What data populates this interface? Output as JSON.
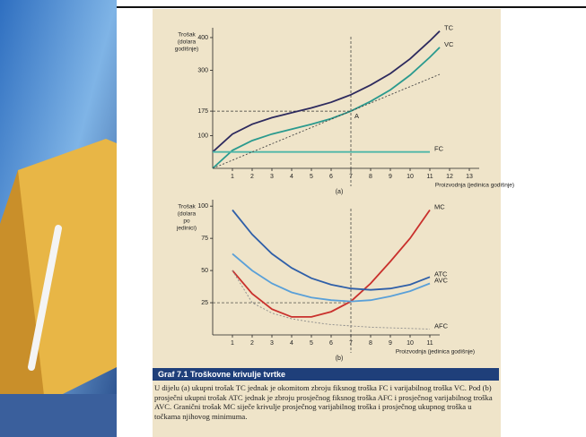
{
  "figure": {
    "title": "Graf 7.1 Troškovne krivulje tvrtke",
    "caption": "U dijelu (a) ukupni trošak TC jednak je okomitom zbroju fiksnog troška FC i varijabilnog troška VC. Pod (b) prosječni ukupni trošak ATC jednak je zbroju prosječnog fiksnog troška AFC i prosječnog varijabilnog troška AVC. Granični trošak MC siječe krivulje prosječnog varijabilnog troška i prosječnog ukupnog troška u točkama njihovog minimuma."
  },
  "chart_data": [
    {
      "type": "line",
      "panel": "(a)",
      "y_label": [
        "Trošak",
        "(dolara",
        "godišnje)"
      ],
      "x_label": "Proizvodnja (jedinica godišnje)",
      "x": [
        0,
        1,
        2,
        3,
        4,
        5,
        6,
        7,
        8,
        9,
        10,
        11,
        11.5
      ],
      "series": [
        {
          "name": "TC",
          "color": "#2d2a5e",
          "style": "solid",
          "values": [
            50,
            105,
            135,
            155,
            170,
            185,
            202,
            225,
            255,
            290,
            335,
            390,
            420
          ]
        },
        {
          "name": "VC",
          "color": "#2a9a8e",
          "style": "solid",
          "values": [
            0,
            55,
            85,
            105,
            120,
            135,
            152,
            175,
            205,
            240,
            285,
            340,
            370
          ]
        },
        {
          "name": "FC",
          "color": "#4db6a8",
          "style": "solid",
          "values": [
            50,
            50,
            50,
            50,
            50,
            50,
            50,
            50,
            50,
            50,
            50,
            50,
            null
          ]
        },
        {
          "name": null,
          "color": "#444444",
          "style": "dotted",
          "values": [
            0,
            25,
            50,
            75,
            100,
            125,
            150,
            175,
            200,
            225,
            250,
            275,
            287.5
          ]
        }
      ],
      "annotations": [
        {
          "text": "A",
          "x": 7,
          "y": 175
        }
      ],
      "guides": {
        "x": 7,
        "y": 175
      },
      "xlim": [
        0,
        13.5
      ],
      "ylim": [
        0,
        430
      ],
      "xticks": [
        1,
        2,
        3,
        4,
        5,
        6,
        7,
        8,
        9,
        10,
        11,
        12,
        13
      ],
      "yticks": [
        100,
        175,
        300,
        400
      ]
    },
    {
      "type": "line",
      "panel": "(b)",
      "y_label": [
        "Trošak",
        "(dolara",
        "po",
        "jedinici)"
      ],
      "x_label": "Proizvodnja (jedinica godišnje)",
      "x": [
        1,
        2,
        3,
        4,
        5,
        6,
        7,
        8,
        9,
        10,
        11
      ],
      "series": [
        {
          "name": "MC",
          "color": "#c9302c",
          "style": "solid",
          "values": [
            50,
            32,
            20,
            14,
            14,
            18,
            26,
            40,
            57,
            75,
            97
          ]
        },
        {
          "name": "ATC",
          "color": "#2f5fa8",
          "style": "solid",
          "values": [
            97,
            78,
            63,
            52,
            44,
            39,
            36,
            35,
            36,
            39,
            45
          ]
        },
        {
          "name": "AVC",
          "color": "#5aa0d8",
          "style": "solid",
          "values": [
            63,
            50,
            40,
            33,
            29,
            27,
            26,
            27,
            30,
            34,
            40
          ]
        },
        {
          "name": "AFC",
          "color": "#8a8a8a",
          "style": "dotted",
          "values": [
            50,
            25,
            17,
            12.5,
            10,
            8,
            7,
            6,
            5.5,
            5,
            4.5
          ]
        }
      ],
      "guides": {
        "x": 7,
        "y": 25
      },
      "xlim": [
        0,
        11.5
      ],
      "ylim": [
        0,
        105
      ],
      "xticks": [
        1,
        2,
        3,
        4,
        5,
        6,
        7,
        8,
        9,
        10,
        11
      ],
      "yticks": [
        25,
        50,
        75,
        100
      ]
    }
  ]
}
